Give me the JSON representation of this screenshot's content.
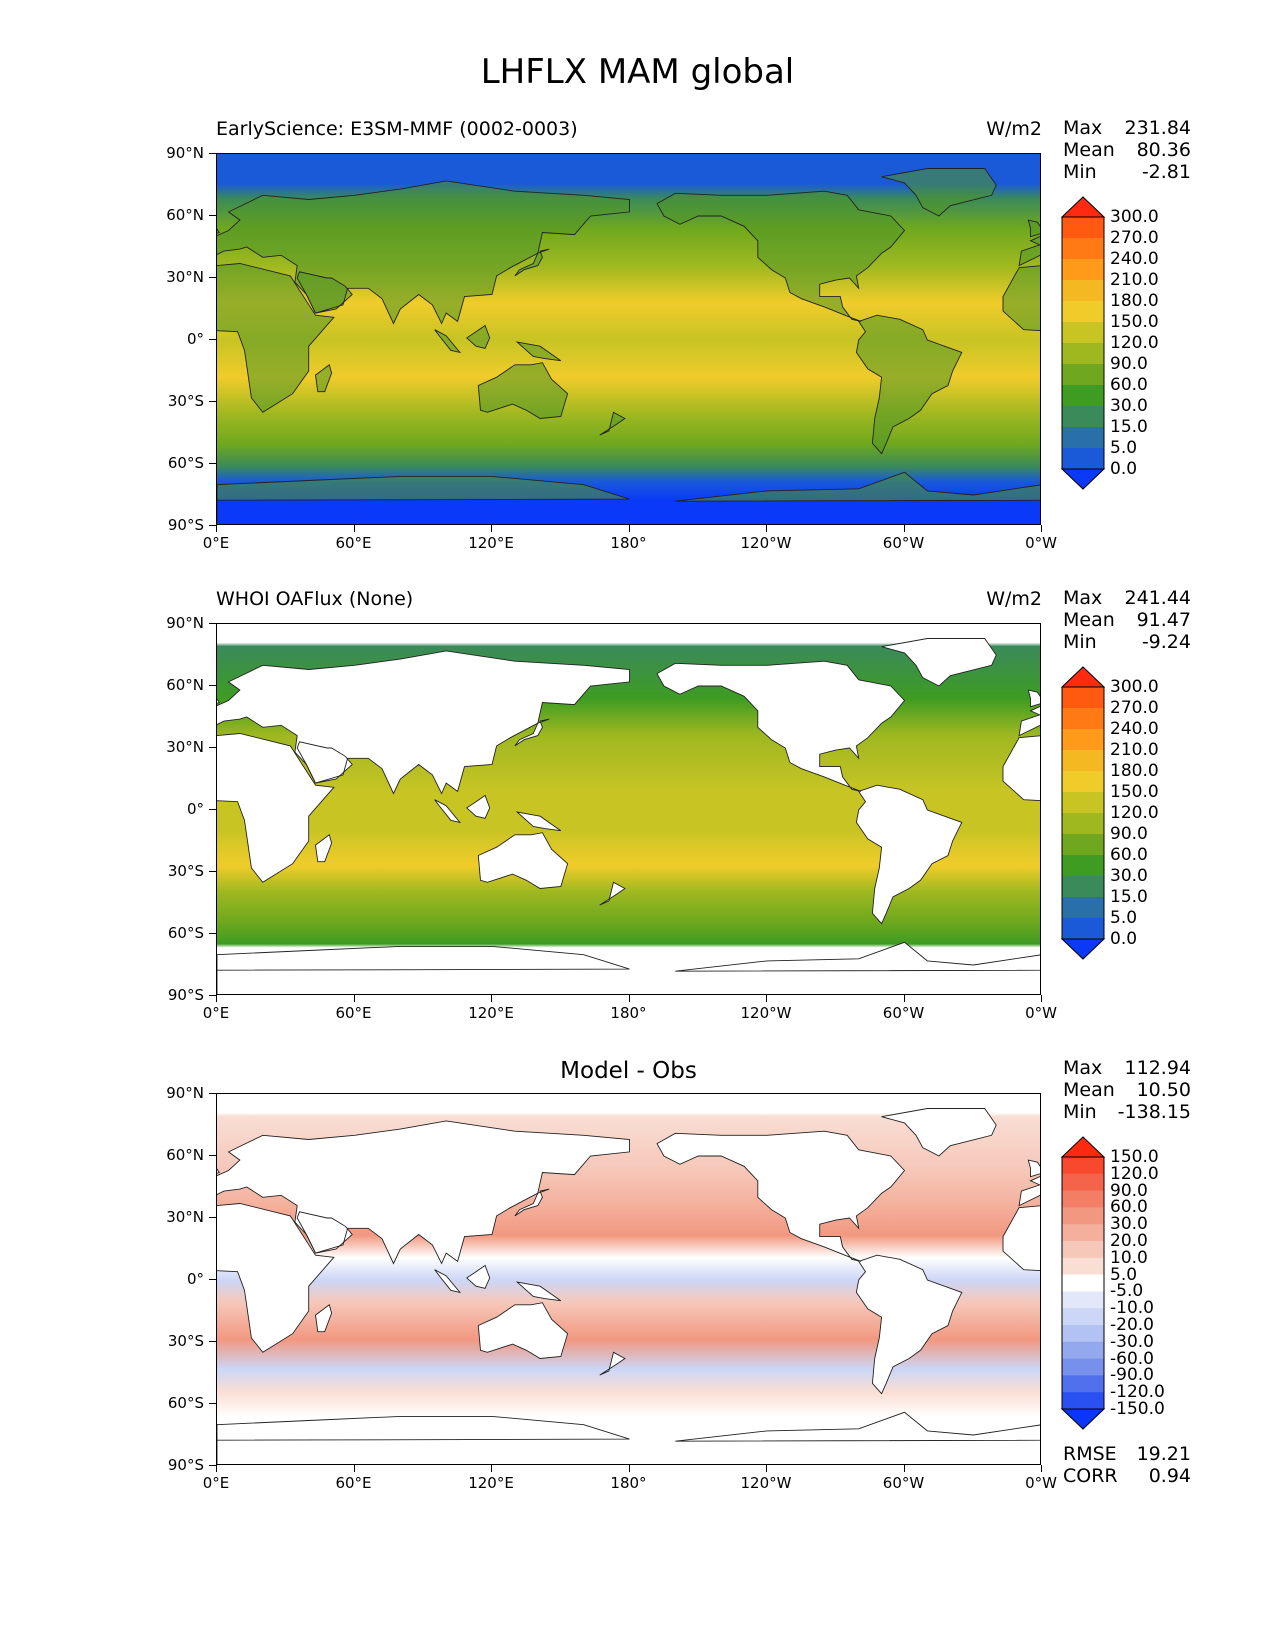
{
  "title": "LHFLX MAM global",
  "axes": {
    "lat_labels": [
      "90°N",
      "60°N",
      "30°N",
      "0°",
      "30°S",
      "60°S",
      "90°S"
    ],
    "lon_labels": [
      "0°E",
      "60°E",
      "120°E",
      "180°",
      "120°W",
      "60°W",
      "0°W"
    ]
  },
  "panels": [
    {
      "title_left": "EarlyScience: E3SM-MMF (0002-0003)",
      "title_center": "",
      "units": "W/m2",
      "stats": [
        {
          "label": "Max",
          "value": "231.84"
        },
        {
          "label": "Mean",
          "value": "80.36"
        },
        {
          "label": "Min",
          "value": "-2.81"
        }
      ],
      "colorbar": {
        "levels": [
          "300.0",
          "270.0",
          "240.0",
          "210.0",
          "180.0",
          "150.0",
          "120.0",
          "90.0",
          "60.0",
          "30.0",
          "15.0",
          "5.0",
          "0.0"
        ],
        "colors": [
          "#ff2a10",
          "#ff5a10",
          "#ff7a14",
          "#ff9a1a",
          "#f4b922",
          "#f0cc2a",
          "#c7c424",
          "#9fb820",
          "#6fa81e",
          "#3e9c22",
          "#3a8a5a",
          "#2a70a8",
          "#1a5ad8",
          "#0a3af8"
        ]
      }
    },
    {
      "title_left": "WHOI OAFlux (None)",
      "title_center": "",
      "units": "W/m2",
      "stats": [
        {
          "label": "Max",
          "value": "241.44"
        },
        {
          "label": "Mean",
          "value": "91.47"
        },
        {
          "label": "Min",
          "value": "-9.24"
        }
      ],
      "colorbar": {
        "levels": [
          "300.0",
          "270.0",
          "240.0",
          "210.0",
          "180.0",
          "150.0",
          "120.0",
          "90.0",
          "60.0",
          "30.0",
          "15.0",
          "5.0",
          "0.0"
        ],
        "colors": [
          "#ff2a10",
          "#ff5a10",
          "#ff7a14",
          "#ff9a1a",
          "#f4b922",
          "#f0cc2a",
          "#c7c424",
          "#9fb820",
          "#6fa81e",
          "#3e9c22",
          "#3a8a5a",
          "#2a70a8",
          "#1a5ad8",
          "#0a3af8"
        ]
      }
    },
    {
      "title_left": "",
      "title_center": "Model - Obs",
      "units": "",
      "stats": [
        {
          "label": "Max",
          "value": "112.94"
        },
        {
          "label": "Mean",
          "value": "10.50"
        },
        {
          "label": "Min",
          "value": "-138.15"
        }
      ],
      "colorbar": {
        "levels": [
          "150.0",
          "120.0",
          "90.0",
          "60.0",
          "30.0",
          "20.0",
          "10.0",
          "5.0",
          "-5.0",
          "-10.0",
          "-20.0",
          "-30.0",
          "-60.0",
          "-90.0",
          "-120.0",
          "-150.0"
        ],
        "colors": [
          "#ff2a10",
          "#f8482e",
          "#f4644a",
          "#f27e66",
          "#f29880",
          "#f4b09c",
          "#f6c8ba",
          "#f9ded4",
          "#ffffff",
          "#e2e8fa",
          "#ccd6f6",
          "#b2c2f2",
          "#94a8ee",
          "#7690ec",
          "#5070ee",
          "#2a50f2",
          "#0a36f8"
        ]
      },
      "footer": [
        {
          "label": "RMSE",
          "value": "19.21"
        },
        {
          "label": "CORR",
          "value": "0.94"
        }
      ]
    }
  ],
  "legend": {
    "icon_names": [
      "colorbar-up-arrow-icon",
      "colorbar-down-arrow-icon"
    ]
  }
}
